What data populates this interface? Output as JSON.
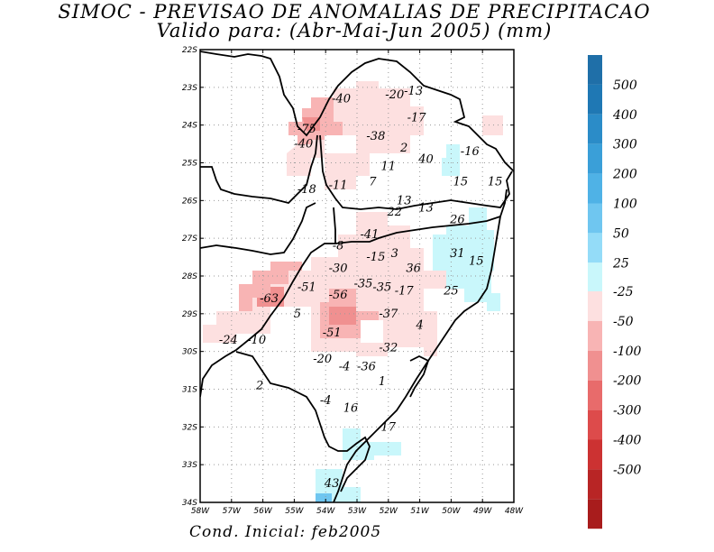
{
  "title": "SIMOC - PREVISAO DE ANOMALIAS DE PRECIPITACAO",
  "subtitle": "Valido para: (Abr-Mai-Jun 2005) (mm)",
  "footer": "Cond. Inicial: feb2005",
  "map": {
    "lon_range": [
      -58,
      -48
    ],
    "lat_range": [
      -34,
      -22
    ],
    "lon_ticks": [
      "58W",
      "57W",
      "56W",
      "55W",
      "54W",
      "53W",
      "52W",
      "51W",
      "50W",
      "49W",
      "48W"
    ],
    "lat_ticks": [
      "22S",
      "23S",
      "24S",
      "25S",
      "26S",
      "27S",
      "28S",
      "29S",
      "30S",
      "31S",
      "32S",
      "33S",
      "34S"
    ],
    "grid": true,
    "anomaly_labels": [
      {
        "text": "-40",
        "lon": -53.5,
        "lat": -23.3
      },
      {
        "text": "-20",
        "lon": -51.8,
        "lat": -23.2
      },
      {
        "text": "-13",
        "lon": -51.2,
        "lat": -23.1
      },
      {
        "text": "-17",
        "lon": -51.1,
        "lat": -23.8
      },
      {
        "text": "-75",
        "lon": -54.6,
        "lat": -24.1
      },
      {
        "text": "-38",
        "lon": -52.4,
        "lat": -24.3
      },
      {
        "text": "-40",
        "lon": -54.7,
        "lat": -24.5
      },
      {
        "text": "2",
        "lon": -51.5,
        "lat": -24.6
      },
      {
        "text": "-16",
        "lon": -49.4,
        "lat": -24.7
      },
      {
        "text": "40",
        "lon": -50.8,
        "lat": -24.9
      },
      {
        "text": "11",
        "lon": -52.0,
        "lat": -25.1
      },
      {
        "text": "7",
        "lon": -52.5,
        "lat": -25.5
      },
      {
        "text": "15",
        "lon": -49.7,
        "lat": -25.5
      },
      {
        "text": "15",
        "lon": -48.6,
        "lat": -25.5
      },
      {
        "text": "-18",
        "lon": -54.6,
        "lat": -25.7
      },
      {
        "text": "-11",
        "lon": -53.6,
        "lat": -25.6
      },
      {
        "text": "13",
        "lon": -51.5,
        "lat": -26.0
      },
      {
        "text": "22",
        "lon": -51.8,
        "lat": -26.3
      },
      {
        "text": "13",
        "lon": -50.8,
        "lat": -26.2
      },
      {
        "text": "26",
        "lon": -49.8,
        "lat": -26.5
      },
      {
        "text": "-41",
        "lon": -52.6,
        "lat": -26.9
      },
      {
        "text": "-8",
        "lon": -53.6,
        "lat": -27.2
      },
      {
        "text": "3",
        "lon": -51.8,
        "lat": -27.4
      },
      {
        "text": "-15",
        "lon": -52.4,
        "lat": -27.5
      },
      {
        "text": "31",
        "lon": -49.8,
        "lat": -27.4
      },
      {
        "text": "15",
        "lon": -49.2,
        "lat": -27.6
      },
      {
        "text": "36",
        "lon": -51.2,
        "lat": -27.8
      },
      {
        "text": "-30",
        "lon": -53.6,
        "lat": -27.8
      },
      {
        "text": "-51",
        "lon": -54.6,
        "lat": -28.3
      },
      {
        "text": "-56",
        "lon": -53.6,
        "lat": -28.5
      },
      {
        "text": "-35",
        "lon": -52.8,
        "lat": -28.2
      },
      {
        "text": "-35",
        "lon": -52.2,
        "lat": -28.3
      },
      {
        "text": "-17",
        "lon": -51.5,
        "lat": -28.4
      },
      {
        "text": "25",
        "lon": -50.0,
        "lat": -28.4
      },
      {
        "text": "-63",
        "lon": -55.8,
        "lat": -28.6
      },
      {
        "text": "5",
        "lon": -54.9,
        "lat": -29.0
      },
      {
        "text": "-37",
        "lon": -52.0,
        "lat": -29.0
      },
      {
        "text": "4",
        "lon": -51.0,
        "lat": -29.3
      },
      {
        "text": "-51",
        "lon": -53.8,
        "lat": -29.5
      },
      {
        "text": "-24",
        "lon": -57.1,
        "lat": -29.7
      },
      {
        "text": "-10",
        "lon": -56.2,
        "lat": -29.7
      },
      {
        "text": "-32",
        "lon": -52.0,
        "lat": -29.9
      },
      {
        "text": "-20",
        "lon": -54.1,
        "lat": -30.2
      },
      {
        "text": "-4",
        "lon": -53.4,
        "lat": -30.4
      },
      {
        "text": "-36",
        "lon": -52.7,
        "lat": -30.4
      },
      {
        "text": "1",
        "lon": -52.2,
        "lat": -30.8
      },
      {
        "text": "2",
        "lon": -56.1,
        "lat": -30.9
      },
      {
        "text": "-4",
        "lon": -54.0,
        "lat": -31.3
      },
      {
        "text": "16",
        "lon": -53.2,
        "lat": -31.5
      },
      {
        "text": "17",
        "lon": -52.0,
        "lat": -32.0
      },
      {
        "text": "43",
        "lon": -53.8,
        "lat": -33.5
      }
    ]
  },
  "colorbar": {
    "positive": [
      {
        "label": "500",
        "color": "#1f78b4"
      },
      {
        "label": "400",
        "color": "#2b8cc8"
      },
      {
        "label": "300",
        "color": "#3a9fd8"
      },
      {
        "label": "200",
        "color": "#4fb2e6"
      },
      {
        "label": "100",
        "color": "#6fc6f0"
      },
      {
        "label": "50",
        "color": "#94dcf8"
      },
      {
        "label": "25",
        "color": "#c9f7fb"
      }
    ],
    "positive_top_color": "#1f6fa8",
    "negative": [
      {
        "label": "-25",
        "color": "#fde0e0"
      },
      {
        "label": "-50",
        "color": "#f8b4b4"
      },
      {
        "label": "-100",
        "color": "#f09090"
      },
      {
        "label": "-200",
        "color": "#e86b6b"
      },
      {
        "label": "-300",
        "color": "#dd4b4b"
      },
      {
        "label": "-400",
        "color": "#cc3232"
      },
      {
        "label": "-500",
        "color": "#b82525"
      }
    ],
    "negative_bottom_color": "#a81c1c"
  }
}
